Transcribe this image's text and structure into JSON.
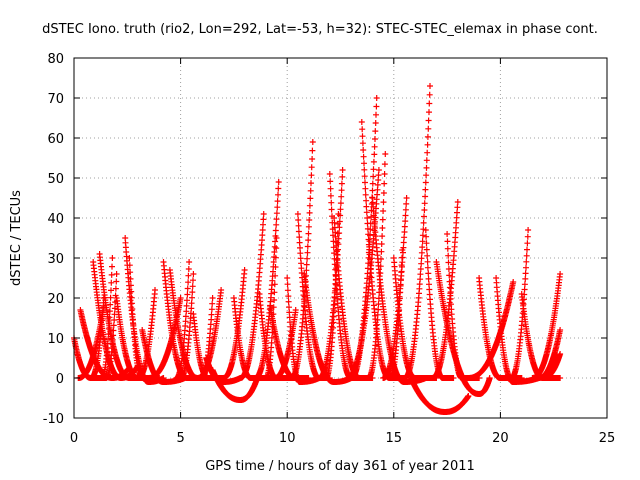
{
  "chart_data": {
    "type": "scatter",
    "title": "dSTEC Iono. truth (rio2, Lon=292, Lat=-53, h=32): STEC-STEC_elemax in phase cont.",
    "xlabel": "GPS time / hours of day 361 of year 2011",
    "ylabel": "dSTEC  / TECUs",
    "xlim": [
      0,
      25
    ],
    "ylim": [
      -10,
      80
    ],
    "xticks": [
      "0",
      "5",
      "10",
      "15",
      "20",
      "25"
    ],
    "yticks": [
      "-10",
      "0",
      "10",
      "20",
      "30",
      "40",
      "50",
      "60",
      "70",
      "80"
    ],
    "grid": true,
    "marker": "plus",
    "color": "#ff0000",
    "arcs": [
      {
        "start": 0.0,
        "end": 1.5,
        "min_x": 0.8,
        "min_y": 0,
        "left_y": 10,
        "right_y": 0
      },
      {
        "start": 0.2,
        "end": 1.4,
        "min_x": 0.2,
        "min_y": 0,
        "left_y": 0,
        "right_y": 18
      },
      {
        "start": 0.3,
        "end": 2.5,
        "min_x": 1.8,
        "min_y": 0,
        "left_y": 17,
        "right_y": 2
      },
      {
        "start": 0.8,
        "end": 1.4,
        "min_x": 0.8,
        "min_y": 0,
        "left_y": 0,
        "right_y": 20
      },
      {
        "start": 0.9,
        "end": 3.0,
        "min_x": 2.2,
        "min_y": 0,
        "left_y": 29,
        "right_y": 3
      },
      {
        "start": 1.2,
        "end": 3.5,
        "min_x": 2.6,
        "min_y": 0,
        "left_y": 31,
        "right_y": 0
      },
      {
        "start": 1.3,
        "end": 1.8,
        "min_x": 1.3,
        "min_y": 0,
        "left_y": 0,
        "right_y": 30
      },
      {
        "start": 1.5,
        "end": 2.0,
        "min_x": 1.5,
        "min_y": 0,
        "left_y": 0,
        "right_y": 26
      },
      {
        "start": 2.0,
        "end": 4.0,
        "min_x": 3.0,
        "min_y": 0,
        "left_y": 20,
        "right_y": 0
      },
      {
        "start": 2.4,
        "end": 4.2,
        "min_x": 3.5,
        "min_y": -1,
        "left_y": 35,
        "right_y": 0
      },
      {
        "start": 2.6,
        "end": 3.2,
        "min_x": 3.2,
        "min_y": 0,
        "left_y": 30,
        "right_y": 0
      },
      {
        "start": 3.0,
        "end": 3.8,
        "min_x": 3.0,
        "min_y": 0,
        "left_y": 0,
        "right_y": 22
      },
      {
        "start": 3.2,
        "end": 5.2,
        "min_x": 4.2,
        "min_y": -1,
        "left_y": 12,
        "right_y": 0
      },
      {
        "start": 3.5,
        "end": 5.0,
        "min_x": 3.5,
        "min_y": 0,
        "left_y": 0,
        "right_y": 20
      },
      {
        "start": 4.2,
        "end": 6.0,
        "min_x": 5.3,
        "min_y": 0,
        "left_y": 29,
        "right_y": 0
      },
      {
        "start": 4.5,
        "end": 6.5,
        "min_x": 5.8,
        "min_y": 0,
        "left_y": 27,
        "right_y": 0
      },
      {
        "start": 4.8,
        "end": 5.4,
        "min_x": 4.8,
        "min_y": 0,
        "left_y": 0,
        "right_y": 29
      },
      {
        "start": 5.0,
        "end": 5.6,
        "min_x": 5.0,
        "min_y": 0,
        "left_y": 0,
        "right_y": 26
      },
      {
        "start": 5.6,
        "end": 7.0,
        "min_x": 6.3,
        "min_y": 0,
        "left_y": 16,
        "right_y": 0
      },
      {
        "start": 5.8,
        "end": 6.9,
        "min_x": 5.8,
        "min_y": 0,
        "left_y": 0,
        "right_y": 22
      },
      {
        "start": 6.0,
        "end": 6.5,
        "min_x": 6.0,
        "min_y": 0,
        "left_y": 0,
        "right_y": 20
      },
      {
        "start": 6.2,
        "end": 7.8,
        "min_x": 7.0,
        "min_y": -1,
        "left_y": 5,
        "right_y": 0
      },
      {
        "start": 6.5,
        "end": 8.6,
        "min_x": 7.8,
        "min_y": -5.5,
        "left_y": 2,
        "right_y": 0
      },
      {
        "start": 7.0,
        "end": 8.0,
        "min_x": 7.0,
        "min_y": 0,
        "left_y": 0,
        "right_y": 27
      },
      {
        "start": 7.5,
        "end": 9.5,
        "min_x": 8.3,
        "min_y": 0,
        "left_y": 20,
        "right_y": 0
      },
      {
        "start": 7.8,
        "end": 8.9,
        "min_x": 7.8,
        "min_y": 0,
        "left_y": 0,
        "right_y": 41
      },
      {
        "start": 8.5,
        "end": 9.6,
        "min_x": 8.5,
        "min_y": 0,
        "left_y": 0,
        "right_y": 49
      },
      {
        "start": 8.7,
        "end": 10.5,
        "min_x": 9.5,
        "min_y": 0,
        "left_y": 21,
        "right_y": 0
      },
      {
        "start": 9.0,
        "end": 9.5,
        "min_x": 9.0,
        "min_y": 0,
        "left_y": 0,
        "right_y": 35
      },
      {
        "start": 9.2,
        "end": 11.0,
        "min_x": 10.4,
        "min_y": 0,
        "left_y": 18,
        "right_y": 0
      },
      {
        "start": 9.4,
        "end": 10.4,
        "min_x": 9.4,
        "min_y": 0,
        "left_y": 0,
        "right_y": 17
      },
      {
        "start": 10.0,
        "end": 11.5,
        "min_x": 10.6,
        "min_y": -1,
        "left_y": 25,
        "right_y": 0
      },
      {
        "start": 10.2,
        "end": 11.2,
        "min_x": 10.2,
        "min_y": 0,
        "left_y": 0,
        "right_y": 59
      },
      {
        "start": 10.5,
        "end": 12.0,
        "min_x": 11.5,
        "min_y": 0,
        "left_y": 41,
        "right_y": 0
      },
      {
        "start": 10.8,
        "end": 13.0,
        "min_x": 12.2,
        "min_y": -1,
        "left_y": 26,
        "right_y": 0
      },
      {
        "start": 11.5,
        "end": 12.6,
        "min_x": 11.5,
        "min_y": 0,
        "left_y": 0,
        "right_y": 52
      },
      {
        "start": 11.8,
        "end": 12.4,
        "min_x": 11.8,
        "min_y": 0,
        "left_y": 0,
        "right_y": 41
      },
      {
        "start": 12.0,
        "end": 13.8,
        "min_x": 13.0,
        "min_y": 0,
        "left_y": 51,
        "right_y": 0
      },
      {
        "start": 12.2,
        "end": 14.0,
        "min_x": 13.4,
        "min_y": 0,
        "left_y": 40,
        "right_y": 0
      },
      {
        "start": 12.8,
        "end": 14.3,
        "min_x": 12.8,
        "min_y": 0,
        "left_y": 0,
        "right_y": 52
      },
      {
        "start": 13.0,
        "end": 14.2,
        "min_x": 13.0,
        "min_y": 0,
        "left_y": 0,
        "right_y": 70
      },
      {
        "start": 13.5,
        "end": 15.5,
        "min_x": 14.8,
        "min_y": 0,
        "left_y": 64,
        "right_y": 0
      },
      {
        "start": 13.8,
        "end": 14.6,
        "min_x": 13.8,
        "min_y": 0,
        "left_y": 0,
        "right_y": 56
      },
      {
        "start": 14.0,
        "end": 16.5,
        "min_x": 15.5,
        "min_y": -1,
        "left_y": 45,
        "right_y": 0
      },
      {
        "start": 14.5,
        "end": 15.6,
        "min_x": 14.5,
        "min_y": 0,
        "left_y": 0,
        "right_y": 45
      },
      {
        "start": 14.8,
        "end": 15.4,
        "min_x": 14.8,
        "min_y": 0,
        "left_y": 0,
        "right_y": 32
      },
      {
        "start": 15.0,
        "end": 17.0,
        "min_x": 16.0,
        "min_y": 0,
        "left_y": 30,
        "right_y": 0
      },
      {
        "start": 15.5,
        "end": 16.7,
        "min_x": 15.5,
        "min_y": 0,
        "left_y": 0,
        "right_y": 73
      },
      {
        "start": 15.8,
        "end": 18.5,
        "min_x": 17.4,
        "min_y": -8.5,
        "left_y": 0,
        "right_y": -4.5
      },
      {
        "start": 16.5,
        "end": 17.8,
        "min_x": 17.3,
        "min_y": 0,
        "left_y": 37,
        "right_y": 0
      },
      {
        "start": 16.8,
        "end": 18.0,
        "min_x": 16.8,
        "min_y": 0,
        "left_y": 0,
        "right_y": 44
      },
      {
        "start": 17.0,
        "end": 19.5,
        "min_x": 19.0,
        "min_y": -4,
        "left_y": 29,
        "right_y": 0
      },
      {
        "start": 17.5,
        "end": 19.0,
        "min_x": 18.2,
        "min_y": 0,
        "left_y": 36,
        "right_y": 0
      },
      {
        "start": 18.5,
        "end": 20.6,
        "min_x": 18.5,
        "min_y": 0,
        "left_y": 0,
        "right_y": 24
      },
      {
        "start": 19.0,
        "end": 21.0,
        "min_x": 20.0,
        "min_y": 0,
        "left_y": 25,
        "right_y": 0
      },
      {
        "start": 19.8,
        "end": 21.8,
        "min_x": 20.6,
        "min_y": -1,
        "left_y": 25,
        "right_y": 0
      },
      {
        "start": 20.5,
        "end": 21.3,
        "min_x": 20.5,
        "min_y": 0,
        "left_y": 0,
        "right_y": 37
      },
      {
        "start": 21.0,
        "end": 22.8,
        "min_x": 22.0,
        "min_y": 0,
        "left_y": 21,
        "right_y": 0
      },
      {
        "start": 21.5,
        "end": 22.8,
        "min_x": 21.5,
        "min_y": 0,
        "left_y": 0,
        "right_y": 26
      },
      {
        "start": 21.8,
        "end": 22.8,
        "min_x": 21.8,
        "min_y": 0,
        "left_y": 0,
        "right_y": 12
      },
      {
        "start": 22.0,
        "end": 22.8,
        "min_x": 22.0,
        "min_y": 0,
        "left_y": 0,
        "right_y": 6
      }
    ]
  }
}
